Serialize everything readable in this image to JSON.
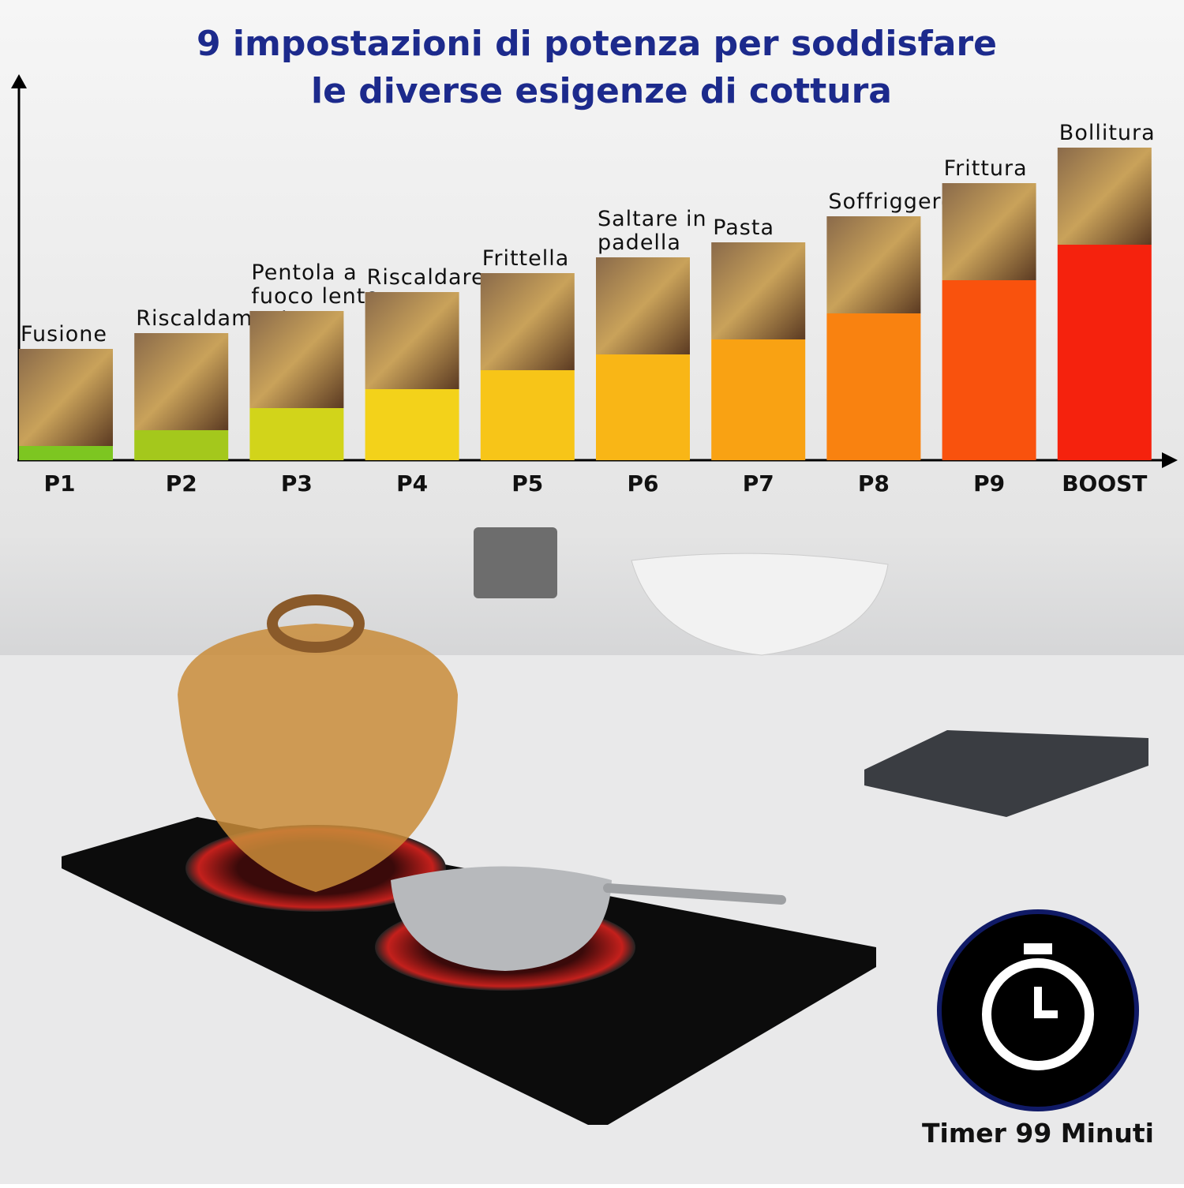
{
  "chart_data": {
    "type": "bar",
    "title": [
      "9 impostazioni di potenza per soddisfare",
      "le diverse esigenze di cottura"
    ],
    "categories": [
      "P1",
      "P2",
      "P3",
      "P4",
      "P5",
      "P6",
      "P7",
      "P8",
      "P9",
      "BOOST"
    ],
    "values": [
      18,
      38,
      66,
      90,
      114,
      134,
      153,
      186,
      228,
      273
    ],
    "colors": [
      "#7dc621",
      "#a4c81c",
      "#d2d41a",
      "#f3d21a",
      "#f7c518",
      "#f9b616",
      "#f9a213",
      "#f98210",
      "#f9520d",
      "#f5220d"
    ],
    "bar_labels": [
      [
        "Fusione"
      ],
      [
        "Riscaldamento"
      ],
      [
        "Pentola a",
        "fuoco lento"
      ],
      [
        "Riscaldare"
      ],
      [
        "Frittella"
      ],
      [
        "Saltare in",
        "padella"
      ],
      [
        "Pasta"
      ],
      [
        "Soffriggere"
      ],
      [
        "Frittura"
      ],
      [
        "Bollitura"
      ]
    ]
  },
  "timer": {
    "label": "Timer 99 Minuti"
  }
}
